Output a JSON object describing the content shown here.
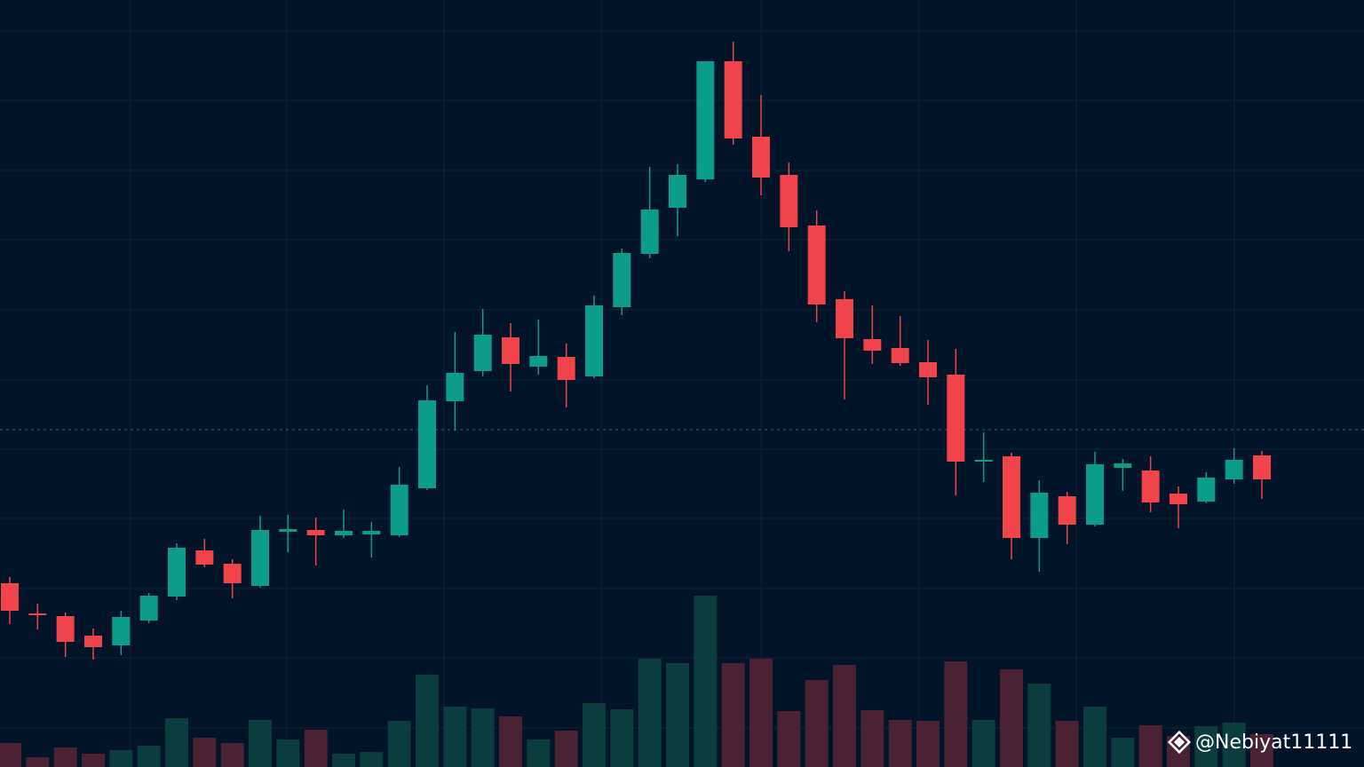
{
  "chart_data": {
    "type": "candlestick",
    "open": [
      207,
      173,
      170,
      148,
      137,
      165,
      192,
      244,
      229,
      204,
      265,
      267,
      261,
      262,
      261,
      314,
      412,
      446,
      484,
      451,
      462,
      440,
      518,
      578,
      630,
      662,
      795,
      710,
      667,
      610,
      527,
      482,
      472,
      456,
      442,
      344,
      350,
      258,
      305,
      273,
      337,
      334,
      308,
      299,
      324,
      351
    ],
    "high": [
      214,
      184,
      174,
      156,
      176,
      196,
      252,
      257,
      234,
      283,
      284,
      281,
      290,
      276,
      338,
      430,
      490,
      516,
      500,
      504,
      477,
      531,
      584,
      676,
      679,
      795,
      817,
      757,
      681,
      627,
      536,
      520,
      508,
      481,
      471,
      377,
      354,
      323,
      310,
      355,
      347,
      350,
      316,
      332,
      359,
      356
    ],
    "low": [
      161,
      155,
      124,
      121,
      126,
      162,
      188,
      225,
      190,
      202,
      242,
      227,
      258,
      236,
      259,
      312,
      379,
      440,
      423,
      442,
      405,
      438,
      509,
      573,
      598,
      659,
      701,
      644,
      581,
      501,
      414,
      454,
      452,
      408,
      306,
      321,
      234,
      220,
      251,
      271,
      311,
      287,
      269,
      297,
      319,
      302
    ],
    "close": [
      176,
      172,
      141,
      135,
      169,
      193,
      247,
      228,
      207,
      267,
      268,
      261,
      266,
      266,
      318,
      413,
      444,
      487,
      454,
      463,
      436,
      520,
      579,
      628,
      667,
      795,
      708,
      664,
      608,
      521,
      483,
      469,
      455,
      439,
      344,
      346,
      258,
      309,
      273,
      341,
      342,
      298,
      296,
      326,
      346,
      324
    ],
    "volume": [
      27,
      11,
      22,
      15,
      19,
      24,
      55,
      33,
      27,
      53,
      31,
      42,
      15,
      17,
      52,
      104,
      68,
      66,
      57,
      31,
      41,
      72,
      65,
      122,
      117,
      193,
      117,
      122,
      63,
      98,
      115,
      64,
      53,
      52,
      119,
      53,
      110,
      94,
      52,
      68,
      33,
      47,
      35,
      46,
      50,
      37
    ],
    "up_color": "#0c9c8a",
    "down_color": "#f0434a",
    "up_volume_color": "#0b3c3e",
    "down_volume_color": "#4b2233",
    "ylim": [
      0,
      864
    ],
    "yticks": [
      44,
      123,
      201,
      280,
      358,
      436,
      515,
      594,
      672,
      751,
      829
    ],
    "y2lim": [
      0,
      864
    ],
    "grid": true,
    "reference_line": 380
  },
  "watermark": "@Nebiyat11111"
}
